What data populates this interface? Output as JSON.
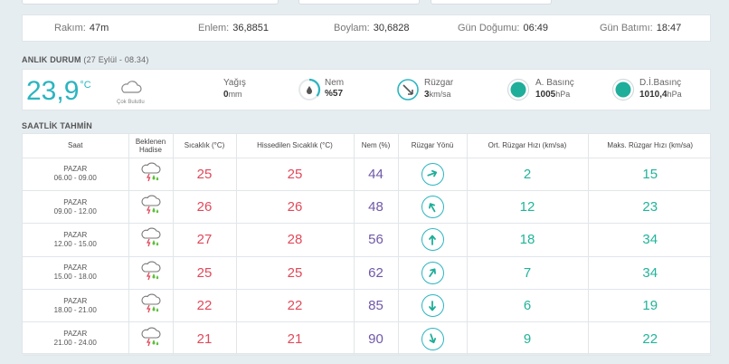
{
  "location_info": [
    {
      "label": "Rakım:",
      "value": "47m"
    },
    {
      "label": "Enlem:",
      "value": "36,8851"
    },
    {
      "label": "Boylam:",
      "value": "30,6828"
    },
    {
      "label": "Gün Doğumu:",
      "value": "06:49"
    },
    {
      "label": "Gün Batımı:",
      "value": "18:47"
    }
  ],
  "current": {
    "title": "ANLIK DURUM",
    "timestamp": "(27 Eylül - 08.34)",
    "temperature": "23,9",
    "temp_unit": "°C",
    "condition": "Çok Bulutlu",
    "precip_label": "Yağış",
    "precip_value": "0",
    "precip_unit": "mm",
    "humidity_label": "Nem",
    "humidity_value": "%57",
    "wind_label": "Rüzgar",
    "wind_value": "3",
    "wind_unit": "km/sa",
    "pressure_label": "A. Basınç",
    "pressure_value": "1005",
    "pressure_unit": "hPa",
    "sea_pressure_label": "D.İ.Basınç",
    "sea_pressure_value": "1010,4",
    "sea_pressure_unit": "hPa",
    "accent_color": "#2bb5c0"
  },
  "hourly": {
    "title": "SAATLİK TAHMİN",
    "headers": [
      "Saat",
      "Beklenen Hadise",
      "Sıcaklık (°C)",
      "Hissedilen Sıcaklık (°C)",
      "Nem (%)",
      "Rüzgar Yönü",
      "Ort. Rüzgar Hızı (km/sa)",
      "Maks. Rüzgar Hızı (km/sa)"
    ],
    "rows": [
      {
        "day": "PAZAR",
        "range": "06.00 - 09.00",
        "event_icon": "thunderstorm-icon",
        "temp": "25",
        "feels": "25",
        "humidity": "44",
        "wind_dir_deg": 70,
        "avg_wind": "2",
        "max_wind": "15"
      },
      {
        "day": "PAZAR",
        "range": "09.00 - 12.00",
        "event_icon": "thunderstorm-icon",
        "temp": "26",
        "feels": "26",
        "humidity": "48",
        "wind_dir_deg": 330,
        "avg_wind": "12",
        "max_wind": "23"
      },
      {
        "day": "PAZAR",
        "range": "12.00 - 15.00",
        "event_icon": "thunderstorm-icon",
        "temp": "27",
        "feels": "28",
        "humidity": "56",
        "wind_dir_deg": 0,
        "avg_wind": "18",
        "max_wind": "34"
      },
      {
        "day": "PAZAR",
        "range": "15.00 - 18.00",
        "event_icon": "thunderstorm-icon",
        "temp": "25",
        "feels": "25",
        "humidity": "62",
        "wind_dir_deg": 35,
        "avg_wind": "7",
        "max_wind": "34"
      },
      {
        "day": "PAZAR",
        "range": "18.00 - 21.00",
        "event_icon": "thunderstorm-icon",
        "temp": "22",
        "feels": "22",
        "humidity": "85",
        "wind_dir_deg": 180,
        "avg_wind": "6",
        "max_wind": "19"
      },
      {
        "day": "PAZAR",
        "range": "21.00 - 24.00",
        "event_icon": "thunderstorm-icon",
        "temp": "21",
        "feels": "21",
        "humidity": "90",
        "wind_dir_deg": 160,
        "avg_wind": "9",
        "max_wind": "22"
      }
    ]
  }
}
